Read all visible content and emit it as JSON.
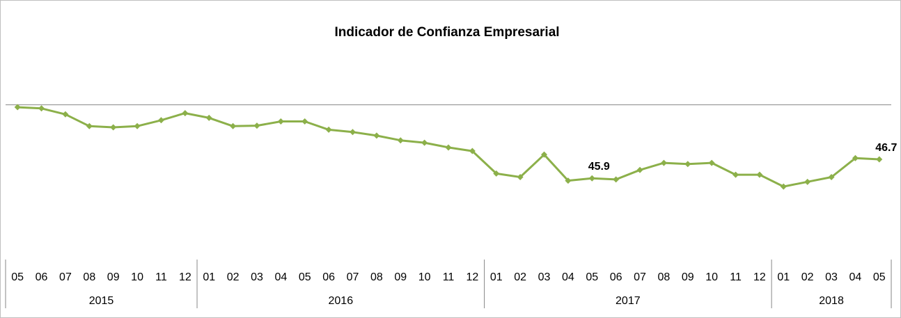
{
  "chart_data": {
    "type": "line",
    "title": "Indicador de Confianza Empresarial",
    "xlabel": "",
    "ylabel": "",
    "ylim": [
      42.5,
      49.9
    ],
    "reference_line": 49.0,
    "grid": false,
    "legend": "none",
    "series_color": "#8CB04A",
    "x": [
      "05",
      "06",
      "07",
      "08",
      "09",
      "10",
      "11",
      "12",
      "01",
      "02",
      "03",
      "04",
      "05",
      "06",
      "07",
      "08",
      "09",
      "10",
      "11",
      "12",
      "01",
      "02",
      "03",
      "04",
      "05",
      "06",
      "07",
      "08",
      "09",
      "10",
      "11",
      "12",
      "01",
      "02",
      "03",
      "04",
      "05"
    ],
    "years": [
      {
        "label": "2015",
        "count": 8
      },
      {
        "label": "2016",
        "count": 12
      },
      {
        "label": "2017",
        "count": 12
      },
      {
        "label": "2018",
        "count": 5
      }
    ],
    "series": [
      {
        "values": [
          48.9,
          48.85,
          48.6,
          48.1,
          48.05,
          48.1,
          48.35,
          48.65,
          48.45,
          48.1,
          48.12,
          48.3,
          48.3,
          47.95,
          47.85,
          47.7,
          47.5,
          47.4,
          47.2,
          47.05,
          46.1,
          45.95,
          46.9,
          45.8,
          45.9,
          45.85,
          46.25,
          46.55,
          46.5,
          46.55,
          46.05,
          46.05,
          45.55,
          45.75,
          45.95,
          46.75,
          46.7
        ]
      }
    ],
    "data_labels": [
      {
        "index": 24,
        "text": "45.9"
      },
      {
        "index": 36,
        "text": "46.7"
      }
    ]
  }
}
